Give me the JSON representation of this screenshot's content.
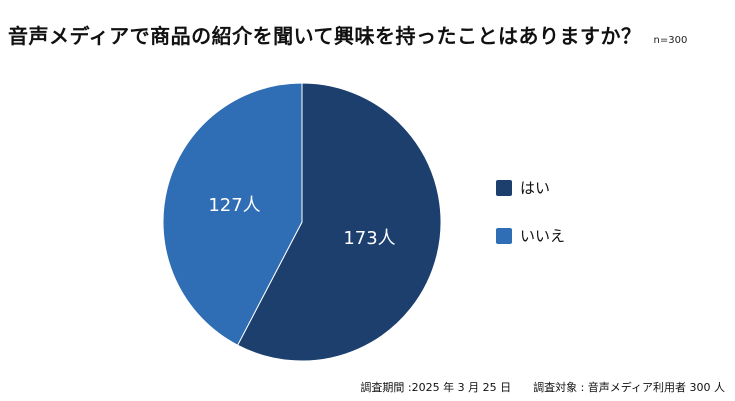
{
  "header": {
    "title": "音声メディアで商品の紹介を聞いて興味を持ったことはありますか？",
    "sample_size": "n=300"
  },
  "chart_data": {
    "type": "pie",
    "title": "音声メディアで商品の紹介を聞いて興味を持ったことはありますか？",
    "categories": [
      "はい",
      "いいえ"
    ],
    "values": [
      173,
      127
    ],
    "unit": "人",
    "data_labels": [
      "173人",
      "127人"
    ],
    "colors": [
      "#1c3f6e",
      "#2f6db5"
    ],
    "legend_position": "right",
    "start_angle": "12 o'clock, clockwise"
  },
  "footer": {
    "period": "調査期間 :2025 年 3 月 25 日",
    "target": "調査対象 : 音声メディア利用者 300 人"
  }
}
